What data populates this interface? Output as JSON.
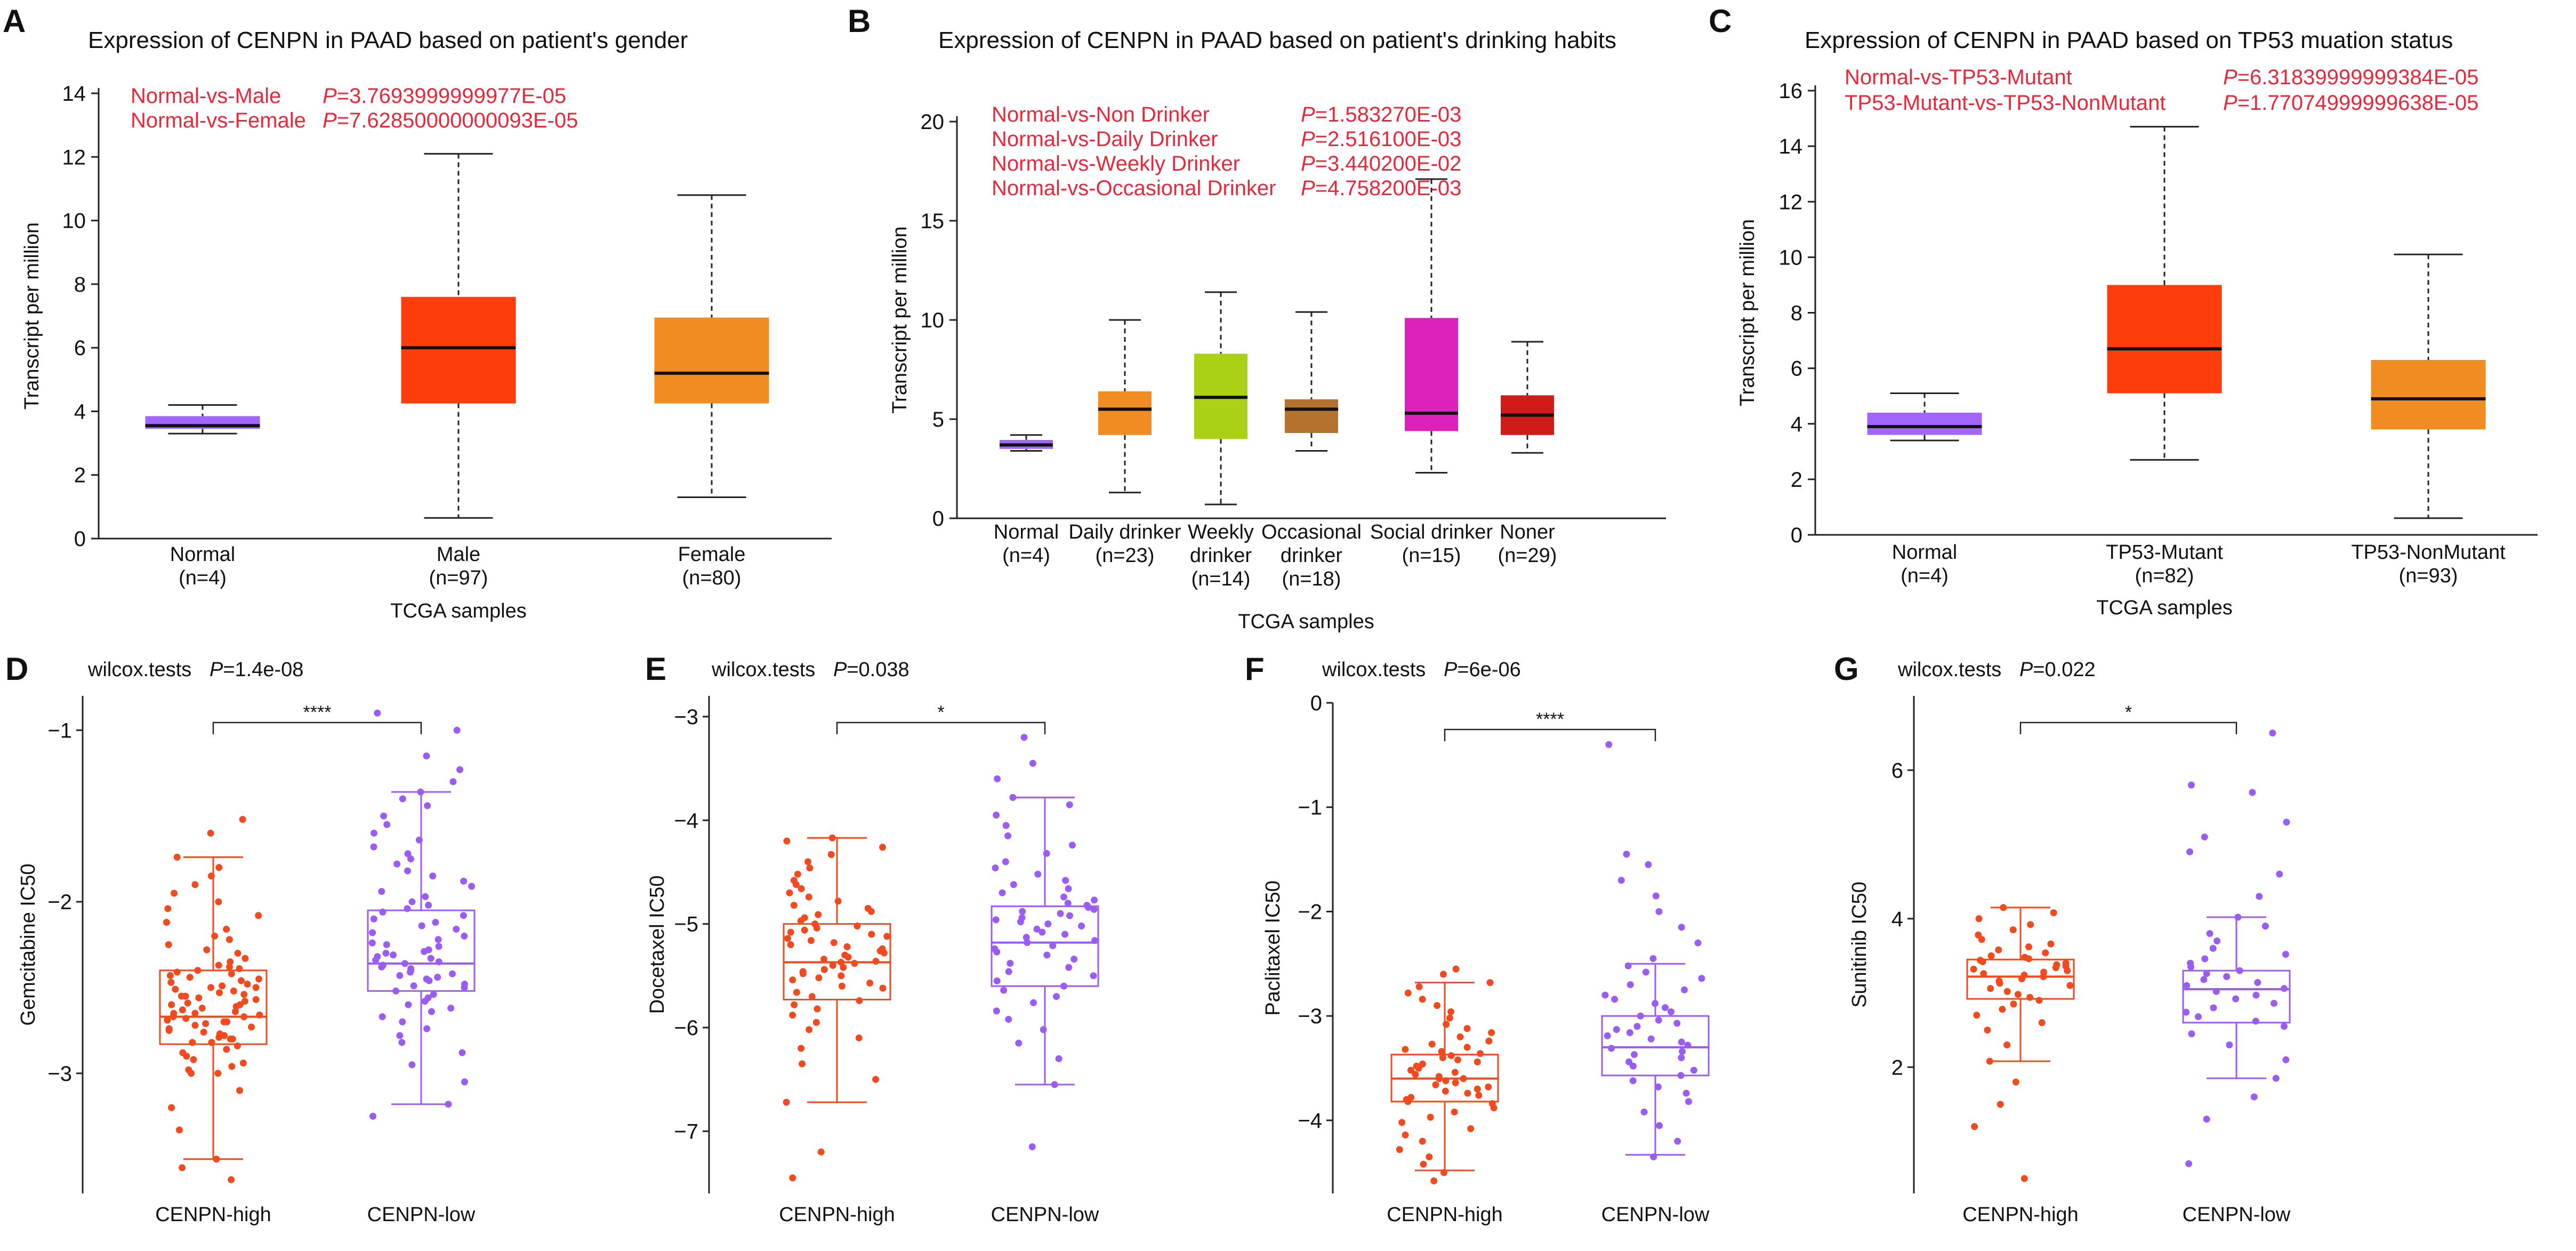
{
  "chart_data": [
    {
      "panel": "A",
      "type": "box",
      "title": "Expression of CENPN in PAAD based on patient's gender",
      "ylabel": "Transcript per million",
      "xlabel": "TCGA samples",
      "ylim": [
        0,
        14
      ],
      "yticks": [
        0,
        2,
        4,
        6,
        8,
        10,
        12,
        14
      ],
      "annotations": [
        {
          "label": "Normal-vs-Male",
          "p": "P=3.7693999999977E-05"
        },
        {
          "label": "Normal-vs-Female",
          "p": "P=7.62850000000093E-05"
        }
      ],
      "groups": [
        {
          "name": "Normal",
          "n": "(n=4)",
          "color": "#a066ff",
          "min": 3.3,
          "q1": 3.45,
          "median": 3.55,
          "q3": 3.85,
          "max": 4.2
        },
        {
          "name": "Male",
          "n": "(n=97)",
          "color": "#ff3d0a",
          "min": 0.65,
          "q1": 4.25,
          "median": 6.0,
          "q3": 7.6,
          "max": 12.1
        },
        {
          "name": "Female",
          "n": "(n=80)",
          "color": "#f08c22",
          "min": 1.3,
          "q1": 4.25,
          "median": 5.2,
          "q3": 6.95,
          "max": 10.8
        }
      ]
    },
    {
      "panel": "B",
      "type": "box",
      "title": "Expression of CENPN in PAAD based on patient's drinking habits",
      "ylabel": "Transcript per million",
      "xlabel": "TCGA samples",
      "ylim": [
        0,
        20
      ],
      "yticks": [
        0,
        5,
        10,
        15,
        20
      ],
      "annotations": [
        {
          "label": "Normal-vs-Non Drinker",
          "p": "P=1.583270E-03"
        },
        {
          "label": "Normal-vs-Daily Drinker",
          "p": "P=2.516100E-03"
        },
        {
          "label": "Normal-vs-Weekly Drinker",
          "p": "P=3.440200E-02"
        },
        {
          "label": "Normal-vs-Occasional Drinker",
          "p": "P=4.758200E-03"
        }
      ],
      "groups": [
        {
          "name": [
            "Normal"
          ],
          "n": "(n=4)",
          "color": "#a066ff",
          "min": 3.4,
          "q1": 3.5,
          "median": 3.7,
          "q3": 3.95,
          "max": 4.2
        },
        {
          "name": [
            "Daily drinker"
          ],
          "n": "(n=23)",
          "color": "#f08c22",
          "min": 1.3,
          "q1": 4.2,
          "median": 5.5,
          "q3": 6.4,
          "max": 10.0
        },
        {
          "name": [
            "Weekly",
            "drinker"
          ],
          "n": "(n=14)",
          "color": "#aad116",
          "min": 0.7,
          "q1": 4.0,
          "median": 6.1,
          "q3": 8.3,
          "max": 11.4
        },
        {
          "name": [
            "Occasional",
            "drinker"
          ],
          "n": "(n=18)",
          "color": "#b5722f",
          "min": 3.4,
          "q1": 4.3,
          "median": 5.5,
          "q3": 6.0,
          "max": 10.4
        },
        {
          "name": [
            "Social drinker"
          ],
          "n": "(n=15)",
          "color": "#dd22bb",
          "min": 2.3,
          "q1": 4.4,
          "median": 5.3,
          "q3": 10.1,
          "max": 17.1
        },
        {
          "name": [
            "Noner"
          ],
          "n": "(n=29)",
          "color": "#d11a1a",
          "min": 3.3,
          "q1": 4.2,
          "median": 5.2,
          "q3": 6.2,
          "max": 8.9
        }
      ]
    },
    {
      "panel": "C",
      "type": "box",
      "title": "Expression of CENPN in PAAD based on TP53 muation status",
      "ylabel": "Transcript per million",
      "xlabel": "TCGA samples",
      "ylim": [
        0,
        16
      ],
      "yticks": [
        0,
        2,
        4,
        6,
        8,
        10,
        12,
        14,
        16
      ],
      "annotations": [
        {
          "label": "Normal-vs-TP53-Mutant",
          "p": "P=6.31839999999384E-05"
        },
        {
          "label": "TP53-Mutant-vs-TP53-NonMutant",
          "p": "P=1.77074999999638E-05"
        }
      ],
      "groups": [
        {
          "name": "Normal",
          "n": "(n=4)",
          "color": "#a066ff",
          "min": 3.4,
          "q1": 3.6,
          "median": 3.9,
          "q3": 4.4,
          "max": 5.1
        },
        {
          "name": "TP53-Mutant",
          "n": "(n=82)",
          "color": "#ff3d0a",
          "min": 2.7,
          "q1": 5.1,
          "median": 6.7,
          "q3": 9.0,
          "max": 14.7
        },
        {
          "name": "TP53-NonMutant",
          "n": "(n=93)",
          "color": "#f08c22",
          "min": 0.6,
          "q1": 3.8,
          "median": 4.9,
          "q3": 6.3,
          "max": 10.1
        }
      ]
    },
    {
      "panel": "D",
      "type": "box_scatter",
      "title": "wilcox.tests",
      "p": "P=1.4e-08",
      "sig": "****",
      "ylabel": "Gemcitabine IC50",
      "categories": [
        "CENPN-high",
        "CENPN-low"
      ],
      "ylim": [
        -3.7,
        -0.8
      ],
      "yticks": [
        -3,
        -2,
        -1
      ],
      "groups": [
        {
          "name": "CENPN-high",
          "color": "#f24a1f",
          "min": -3.5,
          "q1": -2.83,
          "median": -2.67,
          "q3": -2.4,
          "max": -1.74,
          "points": [
            -3.62,
            -3.55,
            -3.5,
            -3.33,
            -3.2,
            -3.1,
            -3.0,
            -3.0,
            -2.98,
            -2.96,
            -2.94,
            -2.92,
            -2.9,
            -2.88,
            -2.86,
            -2.84,
            -2.82,
            -2.82,
            -2.8,
            -2.8,
            -2.79,
            -2.78,
            -2.77,
            -2.76,
            -2.75,
            -2.74,
            -2.73,
            -2.72,
            -2.71,
            -2.7,
            -2.7,
            -2.69,
            -2.68,
            -2.67,
            -2.67,
            -2.66,
            -2.65,
            -2.65,
            -2.64,
            -2.63,
            -2.62,
            -2.61,
            -2.6,
            -2.6,
            -2.59,
            -2.58,
            -2.57,
            -2.56,
            -2.55,
            -2.55,
            -2.54,
            -2.53,
            -2.52,
            -2.51,
            -2.5,
            -2.5,
            -2.49,
            -2.48,
            -2.47,
            -2.46,
            -2.45,
            -2.44,
            -2.43,
            -2.42,
            -2.41,
            -2.4,
            -2.39,
            -2.38,
            -2.37,
            -2.35,
            -2.33,
            -2.3,
            -2.28,
            -2.25,
            -2.22,
            -2.2,
            -2.16,
            -2.12,
            -2.08,
            -2.04,
            -2.0,
            -1.95,
            -1.9,
            -1.85,
            -1.8,
            -1.74,
            -1.6,
            -1.52
          ]
        },
        {
          "name": "CENPN-low",
          "color": "#9a5cf2",
          "min": -3.18,
          "q1": -2.52,
          "median": -2.36,
          "q3": -2.05,
          "max": -1.36,
          "points": [
            -3.25,
            -3.18,
            -3.05,
            -2.95,
            -2.88,
            -2.82,
            -2.78,
            -2.74,
            -2.7,
            -2.67,
            -2.64,
            -2.62,
            -2.6,
            -2.58,
            -2.56,
            -2.54,
            -2.52,
            -2.5,
            -2.49,
            -2.48,
            -2.46,
            -2.45,
            -2.44,
            -2.43,
            -2.42,
            -2.41,
            -2.4,
            -2.39,
            -2.38,
            -2.37,
            -2.36,
            -2.35,
            -2.34,
            -2.33,
            -2.32,
            -2.31,
            -2.3,
            -2.29,
            -2.28,
            -2.26,
            -2.25,
            -2.24,
            -2.22,
            -2.2,
            -2.18,
            -2.16,
            -2.14,
            -2.12,
            -2.1,
            -2.08,
            -2.06,
            -2.04,
            -2.02,
            -2.0,
            -1.97,
            -1.94,
            -1.91,
            -1.88,
            -1.85,
            -1.82,
            -1.78,
            -1.75,
            -1.72,
            -1.68,
            -1.64,
            -1.6,
            -1.55,
            -1.5,
            -1.44,
            -1.4,
            -1.36,
            -1.3,
            -1.23,
            -1.15,
            -1.0,
            -0.9
          ]
        }
      ]
    },
    {
      "panel": "E",
      "type": "box_scatter",
      "title": "wilcox.tests",
      "p": "P=0.038",
      "sig": "*",
      "ylabel": "Docetaxel IC50",
      "categories": [
        "CENPN-high",
        "CENPN-low"
      ],
      "ylim": [
        -7.6,
        -2.8
      ],
      "yticks": [
        -7,
        -6,
        -5,
        -4,
        -3
      ],
      "groups": [
        {
          "name": "CENPN-high",
          "color": "#f24a1f",
          "min": -6.72,
          "q1": -5.73,
          "median": -5.37,
          "q3": -5.0,
          "max": -4.17,
          "points": [
            -7.45,
            -7.2,
            -6.72,
            -6.5,
            -6.35,
            -6.2,
            -6.1,
            -6.02,
            -5.95,
            -5.88,
            -5.82,
            -5.78,
            -5.74,
            -5.7,
            -5.66,
            -5.62,
            -5.6,
            -5.57,
            -5.54,
            -5.52,
            -5.5,
            -5.48,
            -5.46,
            -5.44,
            -5.42,
            -5.4,
            -5.38,
            -5.37,
            -5.36,
            -5.34,
            -5.32,
            -5.3,
            -5.28,
            -5.26,
            -5.24,
            -5.22,
            -5.2,
            -5.18,
            -5.16,
            -5.14,
            -5.12,
            -5.1,
            -5.08,
            -5.06,
            -5.04,
            -5.02,
            -5.0,
            -4.97,
            -4.94,
            -4.91,
            -4.88,
            -4.85,
            -4.82,
            -4.78,
            -4.74,
            -4.7,
            -4.66,
            -4.62,
            -4.58,
            -4.52,
            -4.46,
            -4.4,
            -4.33,
            -4.26,
            -4.2,
            -4.17
          ]
        },
        {
          "name": "CENPN-low",
          "color": "#9a5cf2",
          "min": -6.55,
          "q1": -5.6,
          "median": -5.18,
          "q3": -4.83,
          "max": -3.78,
          "points": [
            -7.15,
            -6.55,
            -6.3,
            -6.15,
            -6.02,
            -5.92,
            -5.84,
            -5.76,
            -5.7,
            -5.64,
            -5.6,
            -5.55,
            -5.5,
            -5.46,
            -5.42,
            -5.38,
            -5.34,
            -5.3,
            -5.27,
            -5.24,
            -5.21,
            -5.18,
            -5.16,
            -5.13,
            -5.1,
            -5.08,
            -5.05,
            -5.02,
            -5.0,
            -4.98,
            -4.96,
            -4.94,
            -4.92,
            -4.9,
            -4.88,
            -4.86,
            -4.84,
            -4.82,
            -4.8,
            -4.77,
            -4.74,
            -4.7,
            -4.66,
            -4.62,
            -4.58,
            -4.52,
            -4.46,
            -4.4,
            -4.32,
            -4.24,
            -4.15,
            -4.05,
            -3.95,
            -3.85,
            -3.78,
            -3.6,
            -3.45,
            -3.2
          ]
        }
      ]
    },
    {
      "panel": "F",
      "type": "box_scatter",
      "title": "wilcox.tests",
      "p": "P=6e-06",
      "sig": "****",
      "ylabel": "Paclitaxel IC50",
      "categories": [
        "CENPN-high",
        "CENPN-low"
      ],
      "ylim": [
        -4.7,
        0
      ],
      "yticks": [
        -4,
        -3,
        -2,
        -1,
        0
      ],
      "groups": [
        {
          "name": "CENPN-high",
          "color": "#f24a1f",
          "min": -4.48,
          "q1": -3.82,
          "median": -3.6,
          "q3": -3.37,
          "max": -2.68,
          "points": [
            -4.58,
            -4.5,
            -4.42,
            -4.35,
            -4.28,
            -4.2,
            -4.14,
            -4.08,
            -4.02,
            -3.97,
            -3.92,
            -3.88,
            -3.84,
            -3.82,
            -3.8,
            -3.78,
            -3.76,
            -3.74,
            -3.72,
            -3.7,
            -3.68,
            -3.66,
            -3.64,
            -3.62,
            -3.6,
            -3.6,
            -3.58,
            -3.56,
            -3.54,
            -3.52,
            -3.5,
            -3.48,
            -3.46,
            -3.44,
            -3.42,
            -3.4,
            -3.38,
            -3.36,
            -3.34,
            -3.32,
            -3.3,
            -3.27,
            -3.24,
            -3.2,
            -3.16,
            -3.12,
            -3.08,
            -3.02,
            -2.96,
            -2.9,
            -2.84,
            -2.78,
            -2.72,
            -2.68,
            -2.6,
            -2.55
          ]
        },
        {
          "name": "CENPN-low",
          "color": "#9a5cf2",
          "min": -4.33,
          "q1": -3.57,
          "median": -3.3,
          "q3": -3.0,
          "max": -2.5,
          "points": [
            -4.35,
            -4.2,
            -4.05,
            -3.92,
            -3.82,
            -3.74,
            -3.68,
            -3.62,
            -3.57,
            -3.52,
            -3.48,
            -3.44,
            -3.4,
            -3.37,
            -3.34,
            -3.31,
            -3.28,
            -3.25,
            -3.22,
            -3.19,
            -3.16,
            -3.13,
            -3.1,
            -3.07,
            -3.04,
            -3.0,
            -2.96,
            -2.92,
            -2.88,
            -2.84,
            -2.8,
            -2.75,
            -2.7,
            -2.64,
            -2.58,
            -2.52,
            -2.45,
            -2.3,
            -2.15,
            -2.0,
            -1.85,
            -1.7,
            -1.55,
            -1.45,
            -0.4
          ]
        }
      ]
    },
    {
      "panel": "G",
      "type": "box_scatter",
      "title": "wilcox.tests",
      "p": "P=0.022",
      "sig": "*",
      "ylabel": "Sunitinib IC50",
      "categories": [
        "CENPN-high",
        "CENPN-low"
      ],
      "ylim": [
        0.3,
        7.0
      ],
      "yticks": [
        2,
        4,
        6
      ],
      "groups": [
        {
          "name": "CENPN-high",
          "color": "#f24a1f",
          "min": 2.08,
          "q1": 2.92,
          "median": 3.22,
          "q3": 3.45,
          "max": 4.15,
          "points": [
            0.5,
            1.2,
            1.5,
            1.8,
            2.08,
            2.3,
            2.5,
            2.6,
            2.7,
            2.78,
            2.85,
            2.9,
            2.94,
            2.98,
            3.02,
            3.06,
            3.1,
            3.13,
            3.16,
            3.19,
            3.22,
            3.24,
            3.26,
            3.28,
            3.3,
            3.32,
            3.34,
            3.36,
            3.38,
            3.4,
            3.42,
            3.44,
            3.46,
            3.48,
            3.5,
            3.54,
            3.58,
            3.62,
            3.66,
            3.72,
            3.78,
            3.85,
            3.92,
            4.0,
            4.08,
            4.15
          ]
        },
        {
          "name": "CENPN-low",
          "color": "#9a5cf2",
          "min": 1.85,
          "q1": 2.6,
          "median": 3.05,
          "q3": 3.3,
          "max": 4.02,
          "points": [
            0.7,
            1.3,
            1.6,
            1.85,
            2.1,
            2.3,
            2.45,
            2.55,
            2.62,
            2.68,
            2.74,
            2.8,
            2.86,
            2.92,
            2.97,
            3.02,
            3.06,
            3.1,
            3.14,
            3.18,
            3.22,
            3.26,
            3.3,
            3.35,
            3.4,
            3.46,
            3.52,
            3.6,
            3.7,
            3.8,
            3.9,
            4.02,
            4.3,
            4.6,
            4.9,
            5.1,
            5.3,
            5.7,
            5.8,
            6.5
          ]
        }
      ]
    }
  ]
}
